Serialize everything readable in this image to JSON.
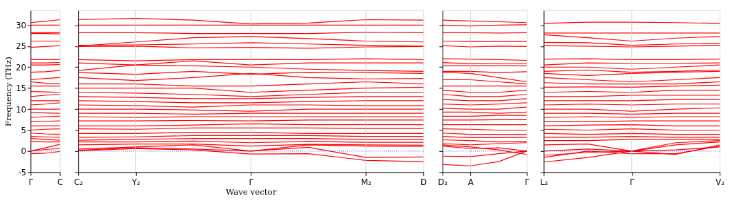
{
  "chart_data": [
    {
      "type": "line",
      "ylabel": "Frequency (THz)",
      "categories": [
        "Γ",
        null,
        "C"
      ],
      "ylim": [
        -5,
        33.5
      ],
      "yticks": [
        -5,
        0,
        5,
        10,
        15,
        20,
        25,
        30
      ],
      "legend": false,
      "marker": "none",
      "line_style": "solid",
      "ref_lines": [
        {
          "axis": "y",
          "value": 0,
          "color": "#0000ff",
          "line_style": "dotted"
        }
      ],
      "series": [
        {
          "color": "#ff0000",
          "values": [
            30.6,
            30.9,
            31.3
          ]
        },
        {
          "color": "#ff0000",
          "values": [
            30,
            30,
            30
          ]
        },
        {
          "color": "#ff0000",
          "values": [
            28.2,
            28.2,
            28.2
          ]
        },
        {
          "color": "#ff0000",
          "values": [
            28,
            28,
            27.9
          ]
        },
        {
          "color": "#ff0000",
          "values": [
            26.2,
            26.2,
            26.2
          ]
        },
        {
          "color": "#ff0000",
          "values": [
            24.7,
            24.9,
            25.1
          ]
        },
        {
          "color": "#ff0000",
          "values": [
            21.8,
            21.8,
            21.8
          ]
        },
        {
          "color": "#ff0000",
          "values": [
            21,
            21,
            21.1
          ]
        },
        {
          "color": "#ff0000",
          "values": [
            20.5,
            20.5,
            20.6
          ]
        },
        {
          "color": "#ff0000",
          "values": [
            18.8,
            18.9,
            19.2
          ]
        },
        {
          "color": "#ff0000",
          "values": [
            17,
            17.3,
            17.5
          ]
        },
        {
          "color": "#ff0000",
          "values": [
            16.5,
            16.2,
            16
          ]
        },
        {
          "color": "#ff0000",
          "values": [
            15.5,
            15.5,
            15.5
          ]
        },
        {
          "color": "#ff0000",
          "values": [
            14.2,
            14.1,
            14
          ]
        },
        {
          "color": "#ff0000",
          "values": [
            13,
            13.3,
            13.5
          ]
        },
        {
          "color": "#ff0000",
          "values": [
            12,
            12,
            12
          ]
        },
        {
          "color": "#ff0000",
          "values": [
            11,
            11.2,
            11.5
          ]
        },
        {
          "color": "#ff0000",
          "values": [
            10,
            10,
            10
          ]
        },
        {
          "color": "#ff0000",
          "values": [
            9.2,
            9.1,
            9
          ]
        },
        {
          "color": "#ff0000",
          "values": [
            8,
            8.2,
            8.3
          ]
        },
        {
          "color": "#ff0000",
          "values": [
            7,
            7.1,
            7.2
          ]
        },
        {
          "color": "#ff0000",
          "values": [
            6,
            6,
            6
          ]
        },
        {
          "color": "#ff0000",
          "values": [
            5,
            5.2,
            5.3
          ]
        },
        {
          "color": "#ff0000",
          "values": [
            4.3,
            4.1,
            4
          ]
        },
        {
          "color": "#ff0000",
          "values": [
            3.5,
            3.4,
            3.3
          ]
        },
        {
          "color": "#ff0000",
          "values": [
            3,
            2.8,
            2.6
          ]
        },
        {
          "color": "#ff0000",
          "values": [
            2.3,
            2.2,
            2.2
          ]
        },
        {
          "color": "#ff0000",
          "values": [
            0,
            0.8,
            1.6
          ]
        },
        {
          "color": "#ff0000",
          "values": [
            0,
            0.4,
            0.6
          ]
        },
        {
          "color": "#ff0000",
          "values": [
            -0.6,
            -0.5,
            -0.1
          ]
        }
      ]
    },
    {
      "type": "line",
      "xlabel": "Wave vector",
      "categories": [
        "C₂",
        "Y₂",
        null,
        "Γ",
        null,
        "M₂",
        "D"
      ],
      "ylim": [
        -5,
        33.5
      ],
      "yticks": [
        -5,
        0,
        5,
        10,
        15,
        20,
        25,
        30
      ],
      "tick_labels": "x",
      "legend": false,
      "marker": "none",
      "line_style": "solid",
      "ref_lines": [
        {
          "axis": "y",
          "value": 0,
          "color": "#0000ff",
          "line_style": "dotted"
        },
        {
          "axis": "x",
          "value": "Y₂",
          "color": "#c8c8c8",
          "line_style": "solid"
        },
        {
          "axis": "x",
          "value": "Γ",
          "color": "#c8c8c8",
          "line_style": "solid"
        },
        {
          "axis": "x",
          "value": "M₂",
          "color": "#c8c8c8",
          "line_style": "solid"
        }
      ],
      "series": [
        {
          "color": "#ff0000",
          "values": [
            31.3,
            31.6,
            31.2,
            30.3,
            30.5,
            31.3,
            31.2
          ]
        },
        {
          "color": "#ff0000",
          "values": [
            30,
            30,
            30,
            30,
            30,
            30,
            30
          ]
        },
        {
          "color": "#ff0000",
          "values": [
            28.2,
            28.2,
            28,
            28,
            28,
            28.3,
            28.2
          ]
        },
        {
          "color": "#ff0000",
          "values": [
            25,
            26,
            27,
            27.3,
            26.8,
            26.2,
            26
          ]
        },
        {
          "color": "#ff0000",
          "values": [
            25.2,
            25.3,
            25.5,
            25.8,
            25.5,
            25.2,
            25
          ]
        },
        {
          "color": "#ff0000",
          "values": [
            24.9,
            25,
            24.6,
            24.7,
            24.5,
            24.8,
            24.9
          ]
        },
        {
          "color": "#ff0000",
          "values": [
            21.8,
            21.5,
            21.8,
            21.8,
            21.8,
            22,
            21.8
          ]
        },
        {
          "color": "#ff0000",
          "values": [
            21,
            20.5,
            21.5,
            20.5,
            21,
            21,
            21
          ]
        },
        {
          "color": "#ff0000",
          "values": [
            19.2,
            20.5,
            20.3,
            20,
            19.5,
            19.2,
            19
          ]
        },
        {
          "color": "#ff0000",
          "values": [
            18.7,
            18.3,
            19,
            18.3,
            18.8,
            18.7,
            18.5
          ]
        },
        {
          "color": "#ff0000",
          "values": [
            17.5,
            16.8,
            17.5,
            18.5,
            17.5,
            17.2,
            17.3
          ]
        },
        {
          "color": "#ff0000",
          "values": [
            16,
            16,
            15.5,
            15.5,
            16,
            16.5,
            16
          ]
        },
        {
          "color": "#ff0000",
          "values": [
            15,
            15,
            15,
            14,
            14.5,
            15,
            15.2
          ]
        },
        {
          "color": "#ff0000",
          "values": [
            14,
            13.8,
            13.5,
            13,
            13.5,
            14,
            14
          ]
        },
        {
          "color": "#ff0000",
          "values": [
            13,
            12.8,
            12.5,
            12.5,
            12.8,
            13,
            13
          ]
        },
        {
          "color": "#ff0000",
          "values": [
            12,
            11.8,
            11.5,
            11.5,
            11.8,
            12,
            12
          ]
        },
        {
          "color": "#ff0000",
          "values": [
            11,
            10.8,
            10.5,
            11,
            11,
            10.8,
            10.8
          ]
        },
        {
          "color": "#ff0000",
          "values": [
            10,
            10,
            9.8,
            9.5,
            10,
            10,
            10
          ]
        },
        {
          "color": "#ff0000",
          "values": [
            9,
            9,
            8.8,
            9,
            9,
            9,
            9
          ]
        },
        {
          "color": "#ff0000",
          "values": [
            8.2,
            8,
            8.2,
            8.2,
            8.2,
            8.2,
            8.2
          ]
        },
        {
          "color": "#ff0000",
          "values": [
            7.2,
            7.2,
            7.3,
            7.2,
            7.4,
            7.4,
            7.4
          ]
        },
        {
          "color": "#ff0000",
          "values": [
            6,
            6,
            6.2,
            6.5,
            6.3,
            6.3,
            6.3
          ]
        },
        {
          "color": "#ff0000",
          "values": [
            5.3,
            5.2,
            5.5,
            5.5,
            5.5,
            5.4,
            5.4
          ]
        },
        {
          "color": "#ff0000",
          "values": [
            4.2,
            4.2,
            4.5,
            4.5,
            4.2,
            4.2,
            4.2
          ]
        },
        {
          "color": "#ff0000",
          "values": [
            3.3,
            3.4,
            3.7,
            3.7,
            3.7,
            3.5,
            3.5
          ]
        },
        {
          "color": "#ff0000",
          "values": [
            2.6,
            2.8,
            3,
            3,
            3,
            2.8,
            2.8
          ]
        },
        {
          "color": "#ff0000",
          "values": [
            2.2,
            2.2,
            2.4,
            2,
            2.3,
            2.1,
            2.1
          ]
        },
        {
          "color": "#ff0000",
          "values": [
            1.5,
            1.7,
            1.7,
            1.2,
            1.6,
            1.5,
            1.4
          ]
        },
        {
          "color": "#ff0000",
          "values": [
            0.5,
            1,
            1.5,
            0,
            1.5,
            1.2,
            1.1
          ]
        },
        {
          "color": "#ff0000",
          "values": [
            0.2,
            0.8,
            0.5,
            0,
            0.9,
            -1.5,
            -1.4
          ]
        },
        {
          "color": "#ff0000",
          "values": [
            0.1,
            0.6,
            0.3,
            -0.7,
            -0.6,
            -2.2,
            -2.5
          ]
        }
      ]
    },
    {
      "type": "line",
      "categories": [
        "D₂",
        "A",
        null,
        "Γ"
      ],
      "ylim": [
        -5,
        33.5
      ],
      "yticks": [
        -5,
        0,
        5,
        10,
        15,
        20,
        25,
        30
      ],
      "tick_labels": "x",
      "legend": false,
      "marker": "none",
      "line_style": "solid",
      "ref_lines": [
        {
          "axis": "y",
          "value": 0,
          "color": "#0000ff",
          "line_style": "dotted"
        },
        {
          "axis": "x",
          "value": "A",
          "color": "#c8c8c8",
          "line_style": "solid"
        }
      ],
      "series": [
        {
          "color": "#ff0000",
          "values": [
            31.2,
            31,
            30.8,
            30.6
          ]
        },
        {
          "color": "#ff0000",
          "values": [
            30,
            29.8,
            30,
            30.1
          ]
        },
        {
          "color": "#ff0000",
          "values": [
            28.2,
            28.2,
            28.1,
            28.2
          ]
        },
        {
          "color": "#ff0000",
          "values": [
            26.2,
            26.1,
            26.1,
            26.1
          ]
        },
        {
          "color": "#ff0000",
          "values": [
            25.1,
            24.8,
            25,
            24.9
          ]
        },
        {
          "color": "#ff0000",
          "values": [
            22,
            21.9,
            21.8,
            21.6
          ]
        },
        {
          "color": "#ff0000",
          "values": [
            21.1,
            20.8,
            20.9,
            20.9
          ]
        },
        {
          "color": "#ff0000",
          "values": [
            20.3,
            20.3,
            20.3,
            20.3
          ]
        },
        {
          "color": "#ff0000",
          "values": [
            19,
            19,
            18.7,
            18.9
          ]
        },
        {
          "color": "#ff0000",
          "values": [
            18.8,
            18.5,
            17.5,
            16.5
          ]
        },
        {
          "color": "#ff0000",
          "values": [
            17,
            17,
            16.5,
            16
          ]
        },
        {
          "color": "#ff0000",
          "values": [
            15.5,
            15.5,
            15.5,
            15.5
          ]
        },
        {
          "color": "#ff0000",
          "values": [
            14.5,
            14,
            14,
            14.5
          ]
        },
        {
          "color": "#ff0000",
          "values": [
            13.5,
            13,
            13,
            13.5
          ]
        },
        {
          "color": "#ff0000",
          "values": [
            12.3,
            12,
            12,
            12.5
          ]
        },
        {
          "color": "#ff0000",
          "values": [
            11.2,
            11,
            11.2,
            11.5
          ]
        },
        {
          "color": "#ff0000",
          "values": [
            10.2,
            10,
            10,
            10.5
          ]
        },
        {
          "color": "#ff0000",
          "values": [
            9.3,
            9.3,
            9,
            9.3
          ]
        },
        {
          "color": "#ff0000",
          "values": [
            8.3,
            8.3,
            8.5,
            8.5
          ]
        },
        {
          "color": "#ff0000",
          "values": [
            7.4,
            7.4,
            7.5,
            7.5
          ]
        },
        {
          "color": "#ff0000",
          "values": [
            6.3,
            6.3,
            6.3,
            6.3
          ]
        },
        {
          "color": "#ff0000",
          "values": [
            5.3,
            5.2,
            5,
            5
          ]
        },
        {
          "color": "#ff0000",
          "values": [
            4.3,
            4,
            4,
            4
          ]
        },
        {
          "color": "#ff0000",
          "values": [
            3.5,
            3.2,
            3.2,
            3.3
          ]
        },
        {
          "color": "#ff0000",
          "values": [
            2.7,
            2.5,
            2.2,
            2.3
          ]
        },
        {
          "color": "#ff0000",
          "values": [
            1.8,
            1.5,
            1.8,
            2
          ]
        },
        {
          "color": "#ff0000",
          "values": [
            1.2,
            0.6,
            0.8,
            0
          ]
        },
        {
          "color": "#ff0000",
          "values": [
            -1.2,
            -1.3,
            -0.6,
            0
          ]
        },
        {
          "color": "#ff0000",
          "values": [
            -3.2,
            -3.5,
            -2.5,
            0
          ]
        },
        {
          "color": "#ff0000",
          "values": [
            1.5,
            1,
            0.3,
            -0.8
          ]
        }
      ]
    },
    {
      "type": "line",
      "categories": [
        "L₂",
        null,
        "Γ",
        null,
        "V₂"
      ],
      "ylim": [
        -5,
        33.5
      ],
      "yticks": [
        -5,
        0,
        5,
        10,
        15,
        20,
        25,
        30
      ],
      "tick_labels": "x",
      "legend": false,
      "marker": "none",
      "line_style": "solid",
      "ref_lines": [
        {
          "axis": "y",
          "value": 0,
          "color": "#0000ff",
          "line_style": "dotted"
        },
        {
          "axis": "x",
          "value": "Γ",
          "color": "#c8c8c8",
          "line_style": "solid"
        }
      ],
      "series": [
        {
          "color": "#ff0000",
          "values": [
            30.4,
            30.7,
            30.7,
            30.6,
            30.4
          ]
        },
        {
          "color": "#ff0000",
          "values": [
            28.1,
            28.1,
            28.1,
            28.1,
            28.1
          ]
        },
        {
          "color": "#ff0000",
          "values": [
            27.7,
            27,
            26.2,
            26.9,
            27.3
          ]
        },
        {
          "color": "#ff0000",
          "values": [
            25.9,
            25.8,
            25.2,
            25.5,
            25.7
          ]
        },
        {
          "color": "#ff0000",
          "values": [
            25.1,
            25,
            24.8,
            25,
            25.2
          ]
        },
        {
          "color": "#ff0000",
          "values": [
            21.9,
            22,
            21.8,
            21.8,
            21.9
          ]
        },
        {
          "color": "#ff0000",
          "values": [
            20.5,
            21,
            20.9,
            20.9,
            21
          ]
        },
        {
          "color": "#ff0000",
          "values": [
            20,
            20,
            19.5,
            20,
            20.5
          ]
        },
        {
          "color": "#ff0000",
          "values": [
            19,
            19.3,
            18.8,
            19,
            19.3
          ]
        },
        {
          "color": "#ff0000",
          "values": [
            18.5,
            18,
            18.5,
            18.8,
            19
          ]
        },
        {
          "color": "#ff0000",
          "values": [
            17.5,
            17,
            16.5,
            17,
            17.5
          ]
        },
        {
          "color": "#ff0000",
          "values": [
            16.3,
            16,
            16,
            16,
            16.5
          ]
        },
        {
          "color": "#ff0000",
          "values": [
            15.2,
            15.3,
            15.2,
            15.5,
            15.7
          ]
        },
        {
          "color": "#ff0000",
          "values": [
            14,
            14.2,
            14,
            14.5,
            14.5
          ]
        },
        {
          "color": "#ff0000",
          "values": [
            13,
            13,
            13.3,
            13.3,
            13.3
          ]
        },
        {
          "color": "#ff0000",
          "values": [
            12,
            12,
            12,
            12.3,
            12.3
          ]
        },
        {
          "color": "#ff0000",
          "values": [
            11,
            11.2,
            11,
            11.2,
            11.2
          ]
        },
        {
          "color": "#ff0000",
          "values": [
            10,
            10,
            9.5,
            10,
            10.3
          ]
        },
        {
          "color": "#ff0000",
          "values": [
            9,
            9,
            8.8,
            9,
            9
          ]
        },
        {
          "color": "#ff0000",
          "values": [
            8,
            8.2,
            8,
            8.2,
            8.2
          ]
        },
        {
          "color": "#ff0000",
          "values": [
            7,
            7,
            7.2,
            7.2,
            7.2
          ]
        },
        {
          "color": "#ff0000",
          "values": [
            6,
            6.2,
            6.3,
            6,
            6
          ]
        },
        {
          "color": "#ff0000",
          "values": [
            5.2,
            5,
            5.3,
            5,
            5
          ]
        },
        {
          "color": "#ff0000",
          "values": [
            4.2,
            4,
            4.2,
            4,
            4
          ]
        },
        {
          "color": "#ff0000",
          "values": [
            3.3,
            3.3,
            3.5,
            3.3,
            3.3
          ]
        },
        {
          "color": "#ff0000",
          "values": [
            2.5,
            2.5,
            2.8,
            2.8,
            2.8
          ]
        },
        {
          "color": "#ff0000",
          "values": [
            1.5,
            1.7,
            0,
            2,
            2.5
          ]
        },
        {
          "color": "#ff0000",
          "values": [
            0,
            0.5,
            0,
            1.5,
            2.2
          ]
        },
        {
          "color": "#ff0000",
          "values": [
            -1,
            -0.3,
            0,
            -0.8,
            1.5
          ]
        },
        {
          "color": "#ff0000",
          "values": [
            -1.5,
            0,
            -0.6,
            -0.6,
            1.2
          ]
        },
        {
          "color": "#ff0000",
          "values": [
            -2.6,
            -1.5,
            0,
            0.3,
            1
          ]
        }
      ]
    }
  ]
}
